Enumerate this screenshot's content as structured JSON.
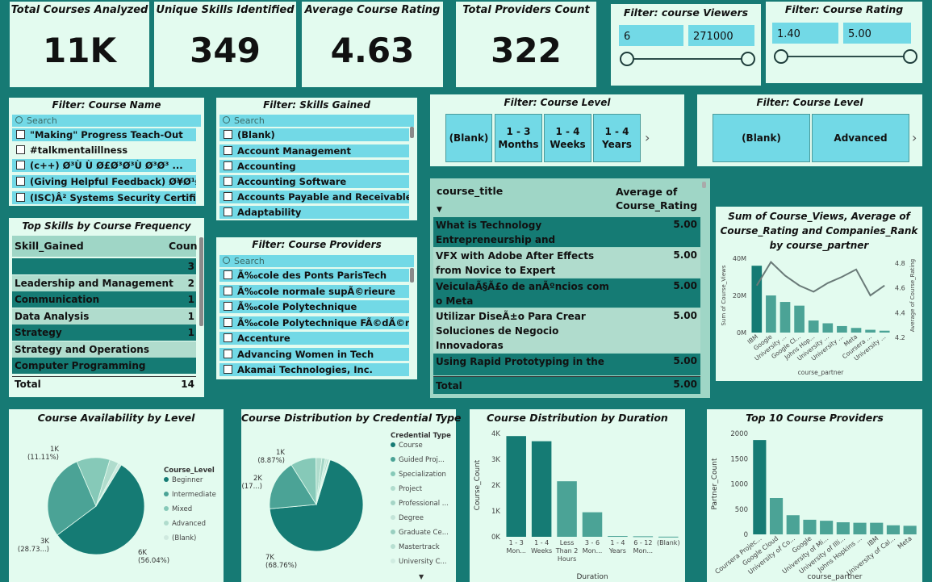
{
  "kpis": {
    "courses": {
      "title": "Total Courses Analyzed",
      "value": "11K"
    },
    "skills": {
      "title": "Unique Skills Identified",
      "value": "349"
    },
    "rating": {
      "title": "Average Course Rating",
      "value": "4.63"
    },
    "providers": {
      "title": "Total Providers Count",
      "value": "322"
    }
  },
  "viewers_filter": {
    "title": "Filter: course Viewers",
    "min": "6",
    "max": "271000",
    "slider_fraction": [
      0,
      1
    ]
  },
  "rating_filter": {
    "title": "Filter: Course Rating",
    "min": "1.40",
    "max": "5.00",
    "slider_fraction": [
      0,
      1
    ]
  },
  "course_name_filter": {
    "title": "Filter: Course Name",
    "placeholder": "Search",
    "items": [
      "\"Making\" Progress Teach-Out",
      "#talkmentalillness",
      "(c++) Ø³Ù Ù Ø£Ø³Ø³Ù Ø³Ø³ ...",
      "(Giving Helpful Feedback) Ø¥Ø¹Ø·Ø...",
      "(ISC)Â² Systems Security Certified Pr..."
    ]
  },
  "skills_filter": {
    "title": "Filter: Skills Gained",
    "placeholder": "Search",
    "items": [
      "(Blank)",
      "Account Management",
      "Accounting",
      "Accounting Software",
      "Accounts Payable and Receivable",
      "Adaptability"
    ]
  },
  "providers_filter": {
    "title": "Filter: Course Providers",
    "placeholder": "Search",
    "items": [
      "Ã‰cole des Ponts ParisTech",
      "Ã‰cole normale supÃ©rieure",
      "Ã‰cole Polytechnique",
      "Ã‰cole Polytechnique FÃ©dÃ©rale de...",
      "Accenture",
      "Advancing Women in Tech",
      "Akamai Technologies, Inc."
    ]
  },
  "level_filter_1": {
    "title": "Filter: Course Level",
    "buttons": [
      "(Blank)",
      "1 - 3 Months",
      "1 - 4 Weeks",
      "1 - 4 Years"
    ]
  },
  "level_filter_2": {
    "title": "Filter: Course Level",
    "buttons": [
      "(Blank)",
      "Advanced"
    ]
  },
  "top_skills": {
    "title": "Top Skills by Course Frequency",
    "headers": [
      "Skill_Gained",
      "Coun"
    ],
    "rows": [
      {
        "skill": "",
        "count": "3"
      },
      {
        "skill": "Leadership and Management",
        "count": "2"
      },
      {
        "skill": "Communication",
        "count": "1"
      },
      {
        "skill": "Data Analysis",
        "count": "1"
      },
      {
        "skill": "Strategy",
        "count": "1"
      },
      {
        "skill": "Strategy and Operations",
        "count": ""
      },
      {
        "skill": "Computer Programming",
        "count": ""
      }
    ],
    "total_label": "Total",
    "total_value": "14"
  },
  "course_table": {
    "headers": [
      "course_title",
      "Average of Course_Rating"
    ],
    "rows": [
      {
        "title": "What is Technology Entrepreneurship and Innovation?",
        "rating": "5.00"
      },
      {
        "title": "VFX with Adobe After Effects from Novice to Expert",
        "rating": "5.00"
      },
      {
        "title": "VeiculaÃ§Ã£o de anÃºncios com o Meta",
        "rating": "5.00"
      },
      {
        "title": "Utilizar DiseÃ±o Para Crear Soluciones de Negocio Innovadoras",
        "rating": "5.00"
      },
      {
        "title": "Using Rapid Prototyping in the",
        "rating": "5.00"
      }
    ],
    "total_label": "Total",
    "total_value": "5.00"
  },
  "combo_chart": {
    "title": "Sum of Course_Views, Average of Course_Rating and Companies_Rank by course_partner",
    "xlabel": "course_partner",
    "ylabel_left": "Sum of Course_Views",
    "ylabel_right": "Average of Course_Rating",
    "left_ticks": [
      "40M",
      "20M",
      "0M"
    ],
    "right_ticks": [
      "4.8",
      "4.6",
      "4.4",
      "4.2"
    ],
    "categories": [
      "IBM",
      "Google",
      "University ...",
      "Google Cl...",
      "Johns Hop...",
      "University ...",
      "University ...",
      "Meta",
      "Coursera ...",
      "University ..."
    ]
  },
  "chart_data": [
    {
      "type": "bar",
      "title": "Sum of Course_Views, Average of Course_Rating and Companies_Rank by course_partner",
      "categories": [
        "IBM",
        "Google",
        "University ...",
        "Google Cl...",
        "Johns Hop...",
        "University ...",
        "University ...",
        "Meta",
        "Coursera ...",
        "University ..."
      ],
      "series": [
        {
          "name": "Sum of Course_Views",
          "values": [
            36000000,
            20000000,
            16500000,
            14500000,
            6500000,
            5000000,
            3500000,
            2500000,
            1500000,
            1000000
          ],
          "axis": "left"
        },
        {
          "name": "Average of Course_Rating",
          "values": [
            4.58,
            4.77,
            4.66,
            4.58,
            4.53,
            4.6,
            4.65,
            4.71,
            4.5,
            4.58
          ],
          "axis": "right"
        }
      ],
      "xlabel": "course_partner",
      "ylabel": "Sum of Course_Views",
      "ylim": [
        0,
        40000000
      ],
      "y2lim": [
        4.2,
        4.8
      ]
    },
    {
      "type": "pie",
      "title": "Course Availability by Level",
      "legend_title": "Course_Level",
      "categories": [
        "Beginner",
        "Intermediate",
        "Mixed",
        "Advanced",
        "(Blank)"
      ],
      "values": [
        56.04,
        28.73,
        11.11,
        3.0,
        1.12
      ],
      "labels": [
        "6K (56.04%)",
        "3K (28.73...)",
        "1K (11.11%)",
        "",
        ""
      ]
    },
    {
      "type": "pie",
      "title": "Course Distribution by Credential Type",
      "legend_title": "Credential Type",
      "categories": [
        "Course",
        "Guided Proj...",
        "Specialization",
        "Project",
        "Professional ...",
        "Degree",
        "Graduate Ce...",
        "Mastertrack",
        "University C..."
      ],
      "values": [
        68.76,
        17.5,
        8.87,
        2.0,
        1.2,
        0.7,
        0.5,
        0.3,
        0.17
      ],
      "labels": [
        "7K (68.76%)",
        "2K (17...)",
        "1K (8.87%)"
      ]
    },
    {
      "type": "bar",
      "title": "Course Distribution by Duration",
      "categories": [
        "1 - 3 Mon...",
        "1 - 4 Weeks",
        "Less Than 2 Hours",
        "3 - 6 Mon...",
        "1 - 4 Years",
        "6 - 12 Mon...",
        "(Blank)"
      ],
      "values": [
        3900,
        3700,
        2150,
        950,
        30,
        20,
        5
      ],
      "xlabel": "Duration",
      "ylabel": "Course_Count",
      "ylim": [
        0,
        4000
      ],
      "yticks": [
        "4K",
        "3K",
        "2K",
        "1K",
        "0K"
      ]
    },
    {
      "type": "bar",
      "title": "Top 10 Course Providers",
      "categories": [
        "Coursera Projec...",
        "Google Cloud",
        "University of Co...",
        "Google",
        "University of Mi...",
        "University of Illi...",
        "Johns Hopkins ...",
        "IBM",
        "University of Cal...",
        "Meta"
      ],
      "values": [
        1870,
        720,
        380,
        290,
        270,
        240,
        230,
        230,
        180,
        170
      ],
      "xlabel": "course_partner",
      "ylabel": "Partner_Count",
      "ylim": [
        0,
        2000
      ],
      "yticks": [
        "2000",
        "1500",
        "1000",
        "500",
        "0"
      ]
    }
  ],
  "pie1_title": "Course Availability by Level",
  "pie2_title": "Course Distribution by Credential Type",
  "bar1_title": "Course Distribution by Duration",
  "bar2_title": "Top 10 Course Providers",
  "colors": {
    "dark": "#157b74",
    "mid": "#4ba396",
    "light": "#86c9b8",
    "lighter": "#b0dccd",
    "line": "#6a7a78",
    "accent": "#72d9e6"
  }
}
